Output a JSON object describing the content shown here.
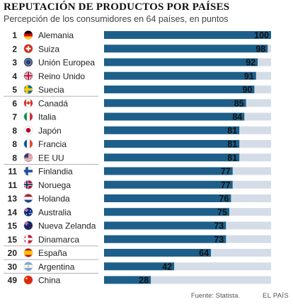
{
  "chart_data": {
    "type": "bar",
    "orientation": "horizontal",
    "title": "REPUTACIÓN DE PRODUCTOS POR PAÍSES",
    "subtitle": "Percepción de los consumidores en 64 países, en puntos",
    "xlim": [
      0,
      100
    ],
    "colors": {
      "bar": "#1d5f8a",
      "track": "#d4dde7",
      "rule": "#999999",
      "value_text": "#111111"
    },
    "rows": [
      {
        "rank": "1",
        "country": "Alemania",
        "value": 100,
        "flag": "de-flag-icon"
      },
      {
        "rank": "2",
        "country": "Suiza",
        "value": 98,
        "flag": "ch-flag-icon"
      },
      {
        "rank": "3",
        "country": "Unión Europea",
        "value": 92,
        "flag": "eu-flag-icon"
      },
      {
        "rank": "4",
        "country": "Reino Unido",
        "value": 91,
        "flag": "gb-flag-icon"
      },
      {
        "rank": "5",
        "country": "Suecia",
        "value": 90,
        "flag": "se-flag-icon"
      },
      {
        "rank": "6",
        "country": "Canadá",
        "value": 85,
        "flag": "ca-flag-icon"
      },
      {
        "rank": "7",
        "country": "Italia",
        "value": 84,
        "flag": "it-flag-icon"
      },
      {
        "rank": "8",
        "country": "Japón",
        "value": 81,
        "flag": "jp-flag-icon"
      },
      {
        "rank": "8",
        "country": "Francia",
        "value": 81,
        "flag": "fr-flag-icon"
      },
      {
        "rank": "8",
        "country": "EE UU",
        "value": 81,
        "flag": "us-flag-icon"
      },
      {
        "rank": "11",
        "country": "Finlandia",
        "value": 77,
        "flag": "fi-flag-icon"
      },
      {
        "rank": "11",
        "country": "Noruega",
        "value": 77,
        "flag": "no-flag-icon"
      },
      {
        "rank": "13",
        "country": "Holanda",
        "value": 76,
        "flag": "nl-flag-icon"
      },
      {
        "rank": "14",
        "country": "Australia",
        "value": 75,
        "flag": "au-flag-icon"
      },
      {
        "rank": "15",
        "country": "Nueva Zelanda",
        "value": 73,
        "flag": "nz-flag-icon"
      },
      {
        "rank": "15",
        "country": "Dinamarca",
        "value": 73,
        "flag": "dk-flag-icon"
      },
      {
        "rank": "20",
        "country": "España",
        "value": 64,
        "flag": "es-flag-icon"
      },
      {
        "rank": "30",
        "country": "Argentina",
        "value": 42,
        "flag": "ar-flag-icon"
      },
      {
        "rank": "49",
        "country": "China",
        "value": 28,
        "flag": "cn-flag-icon"
      }
    ],
    "source": "Fuente: Statista.",
    "publisher": "EL PAÍS"
  }
}
